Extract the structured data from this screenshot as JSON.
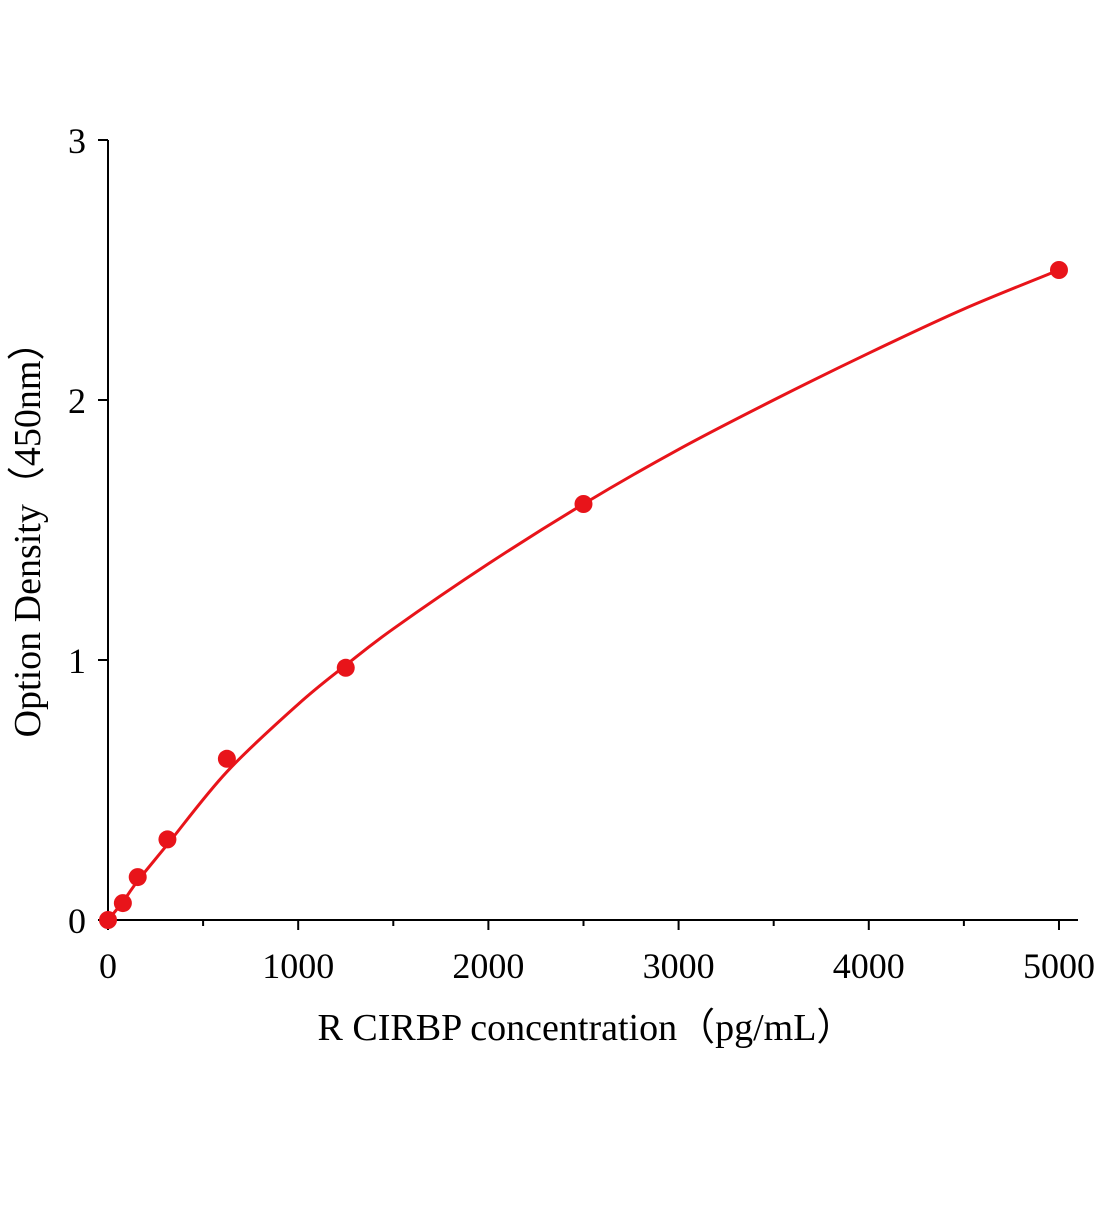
{
  "chart_data": {
    "type": "scatter",
    "x_label": "R CIRBP concentration（pg/mL）",
    "y_label": "Option Density（450nm）",
    "x": [
      0,
      78.125,
      156.25,
      312.5,
      625,
      1250,
      2500,
      5000
    ],
    "series": [
      {
        "color": "#e8141a",
        "values": [
          0,
          0.065,
          0.165,
          0.31,
          0.62,
          0.97,
          1.6,
          2.5
        ]
      }
    ],
    "curve": {
      "color": "#e8141a",
      "x": [
        0,
        78,
        156,
        312,
        625,
        1000,
        1250,
        1500,
        2000,
        2500,
        3000,
        3500,
        4000,
        4500,
        5000
      ],
      "values": [
        0,
        0.07,
        0.15,
        0.29,
        0.57,
        0.83,
        0.98,
        1.12,
        1.37,
        1.6,
        1.81,
        2.0,
        2.18,
        2.35,
        2.5
      ]
    },
    "xlim": [
      0,
      5100
    ],
    "ylim": [
      0,
      3
    ],
    "xticks": [
      0,
      1000,
      2000,
      3000,
      4000,
      5000
    ],
    "xminorticks": [
      500,
      1500,
      2500,
      3500,
      4500
    ],
    "yticks": [
      0,
      1,
      2,
      3
    ],
    "grid": false
  }
}
